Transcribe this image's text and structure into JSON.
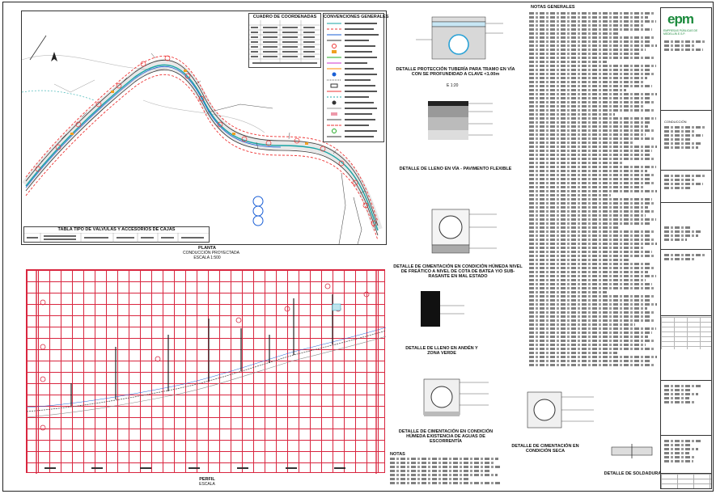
{
  "plan": {
    "coord_table_title": "CUADRO DE COORDENADAS",
    "coord_headers": [
      "PUNTO",
      "NORTE",
      "ESTE",
      "DISTANCIA"
    ],
    "legend_title": "CONVENCIONES GENERALES",
    "valves_table_title": "TABLA TIPO DE VÁLVULAS Y ACCESORIOS DE CAJAS",
    "plan_label": "PLANTA",
    "plan_sub": "CONDUCCIÓN PROYECTADA",
    "scale": "ESCALA 1:500"
  },
  "profile": {
    "label": "PERFIL",
    "scale": "ESCALA"
  },
  "details": {
    "d1": "DETALLE PROTECCIÓN TUBERÍA PARA TRAMO EN VÍA CON SE PROFUNDIDAD A CLAVE <1.00m",
    "d1b": "E 1:20",
    "d2": "DETALLE DE LLENO EN VÍA - PAVIMENTO FLEXIBLE",
    "d3": "DETALLE DE CIMENTACIÓN EN CONDICIÓN HÚMEDA NIVEL DE FREÁTICO A NIVEL DE COTA DE BATEA Y/O SUB-RASANTE EN MAL ESTADO",
    "d4": "DETALLE DE LLENO EN ANDÉN Y ZONA VERDE",
    "d5": "DETALLE DE CIMENTACIÓN EN CONDICIÓN HÚMEDA EXISTENCIA DE AGUAS DE ESCORRENTÍA",
    "d6": "DETALLE DE CIMENTACIÓN EN CONDICIÓN SECA",
    "d7": "DETALLE DE SOLDADURA"
  },
  "notes": {
    "title": "NOTAS GENERALES",
    "bottom_title": "NOTAS"
  },
  "titleblock": {
    "brand": "epm",
    "company": "EMPRESAS PÚBLICAS DE MEDELLÍN E.S.P.",
    "project": "CONDUCCIÓN",
    "stamp": "EPM"
  }
}
